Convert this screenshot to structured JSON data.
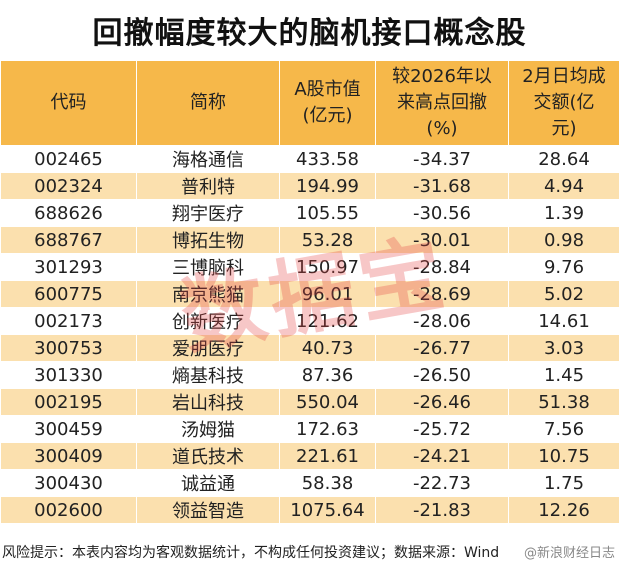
{
  "title": "回撤幅度较大的脑机接口概念股",
  "headers": [
    "代码",
    "简称",
    "A股市值\n(亿元)",
    "较2026年以\n来高点回撤\n(%)",
    "2月日均成\n交额(亿\n元)"
  ],
  "rows": [
    [
      "002465",
      "海格通信",
      "433.58",
      "-34.37",
      "28.64"
    ],
    [
      "002324",
      "普利特",
      "194.99",
      "-31.68",
      "4.94"
    ],
    [
      "688626",
      "翔宇医疗",
      "105.55",
      "-30.56",
      "1.39"
    ],
    [
      "688767",
      "博拓生物",
      "53.28",
      "-30.01",
      "0.98"
    ],
    [
      "301293",
      "三博脑科",
      "150.97",
      "-28.84",
      "9.76"
    ],
    [
      "600775",
      "南京熊猫",
      "96.01",
      "-28.69",
      "5.02"
    ],
    [
      "002173",
      "创新医疗",
      "121.62",
      "-28.06",
      "14.61"
    ],
    [
      "300753",
      "爱朋医疗",
      "40.73",
      "-26.77",
      "3.03"
    ],
    [
      "301330",
      "熵基科技",
      "87.36",
      "-26.50",
      "1.45"
    ],
    [
      "002195",
      "岩山科技",
      "550.04",
      "-26.46",
      "51.38"
    ],
    [
      "300459",
      "汤姆猫",
      "172.63",
      "-25.72",
      "7.56"
    ],
    [
      "300409",
      "道氏技术",
      "221.61",
      "-24.21",
      "10.75"
    ],
    [
      "300430",
      "诚益通",
      "58.38",
      "-22.73",
      "1.75"
    ],
    [
      "002600",
      "领益智造",
      "1075.64",
      "-21.83",
      "12.26"
    ]
  ],
  "watermark": "数据宝",
  "footer": "风险提示：本表内容均为客观数据统计，不构成任何投资建议；数据来源：Wind",
  "footer_badge": "@新浪财经日志",
  "colors": {
    "header_bg": "#f6b84a",
    "stripe_bg": "#fbe0ae",
    "watermark": "#e64646"
  }
}
